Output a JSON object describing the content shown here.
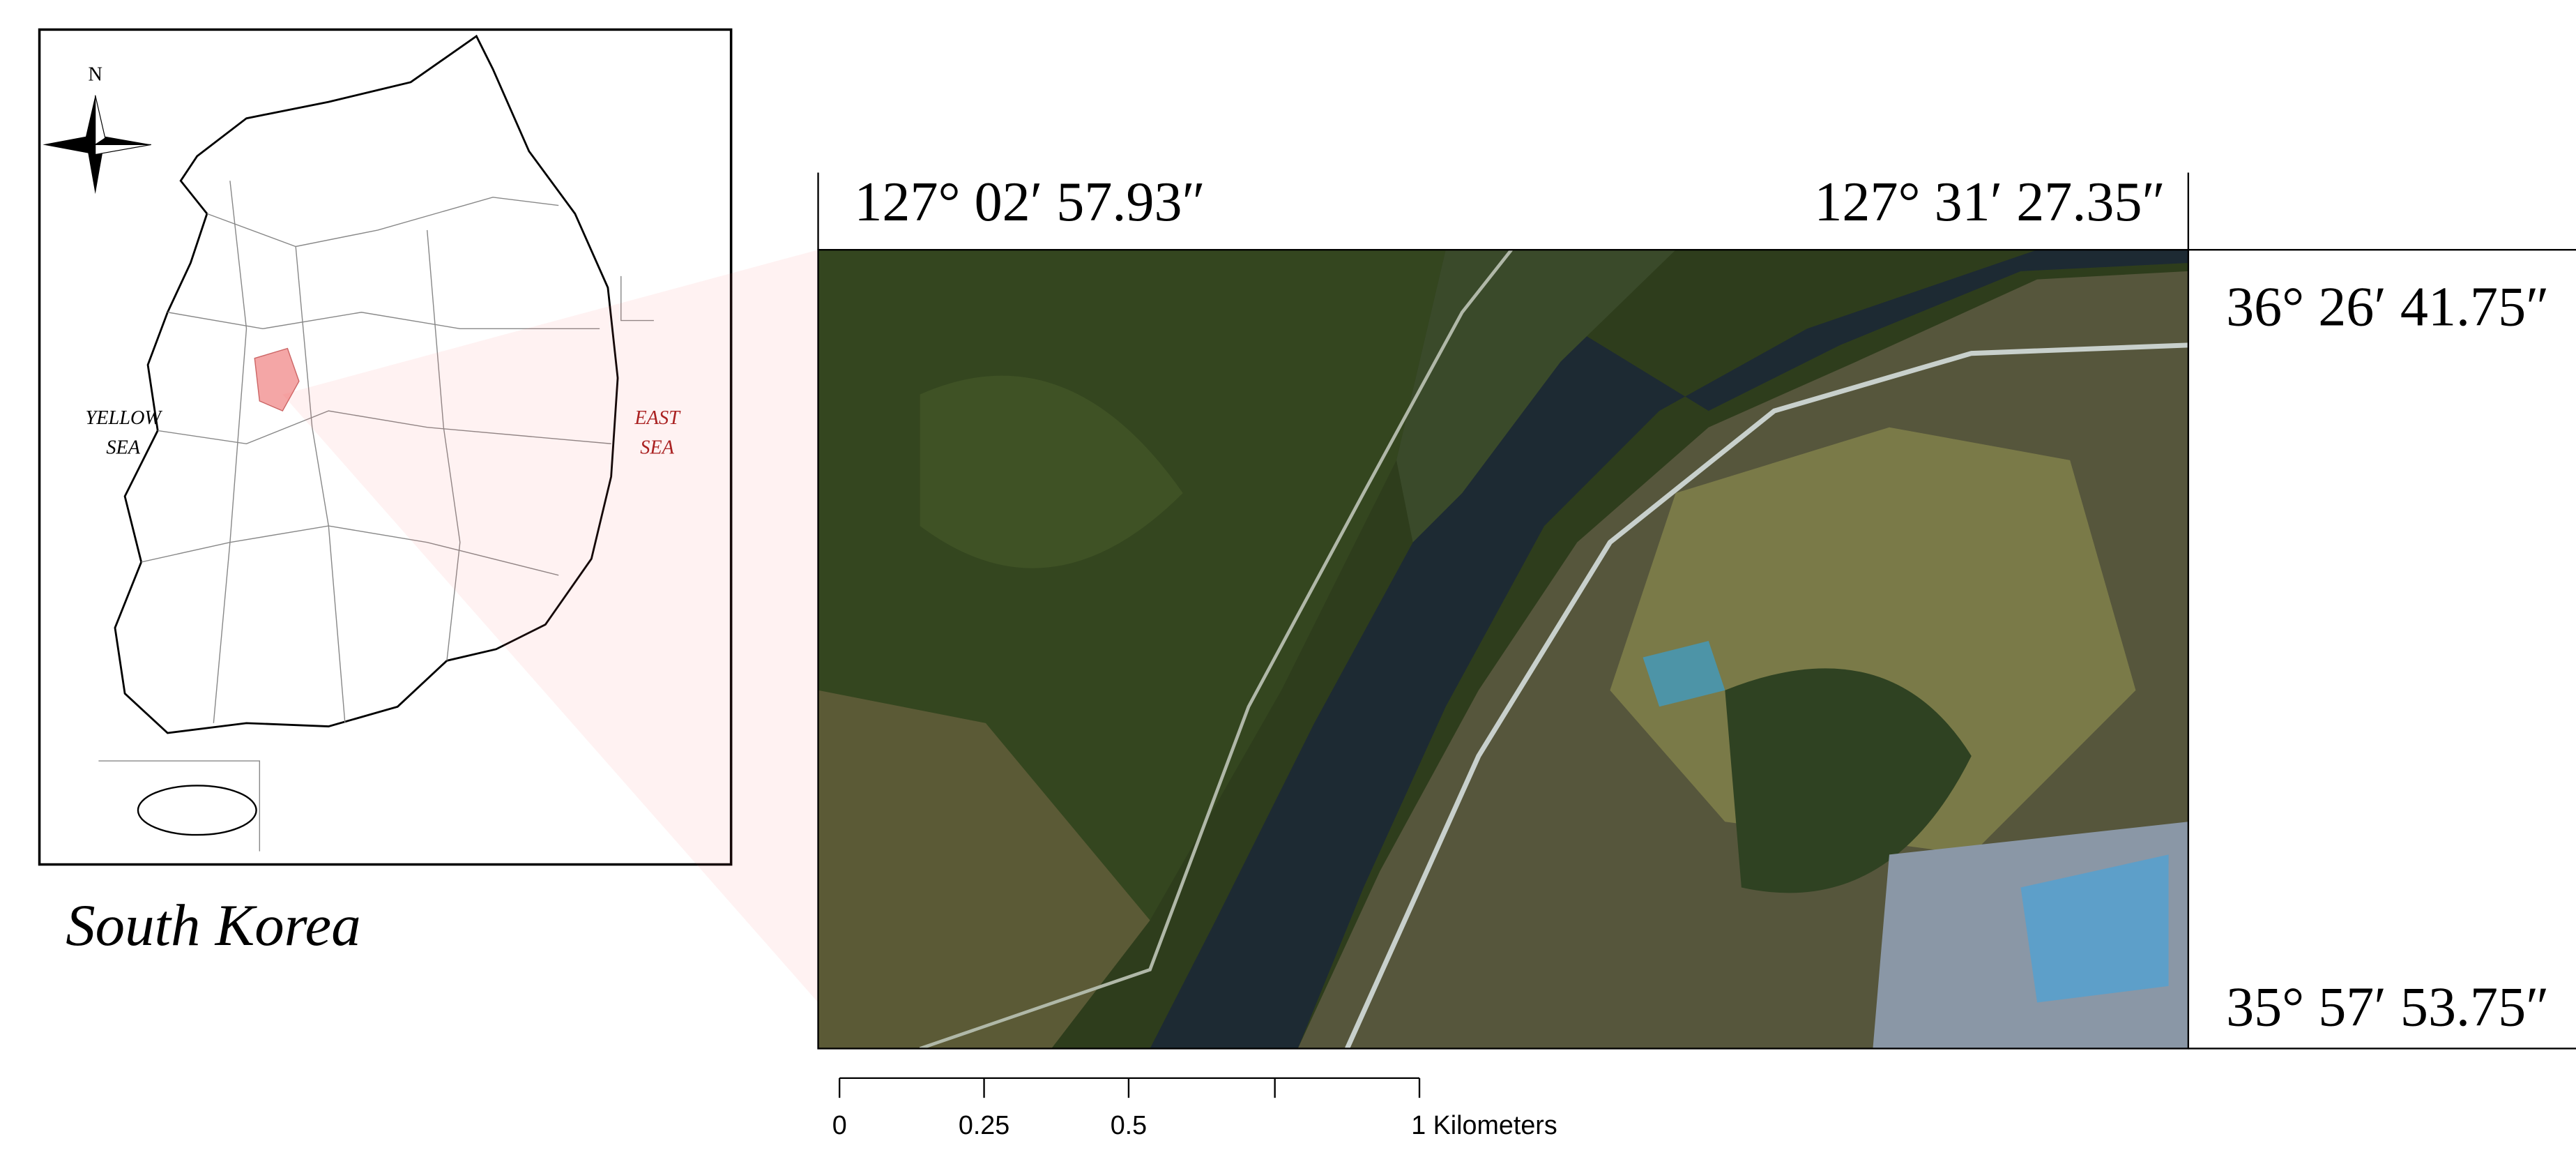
{
  "inset": {
    "north": "N",
    "yellow_sea": [
      "YELLOW",
      "SEA"
    ],
    "east_sea": [
      "EAST",
      "SEA"
    ],
    "caption": "South Korea"
  },
  "image": {
    "top_left": "127° 02′ 57.93″",
    "top_right": "127° 31′ 27.35″",
    "right_top": "36° 26′ 41.75″",
    "right_bottom": "35° 57′ 53.75″"
  },
  "scale_bar": {
    "labels": [
      "0",
      "0.25",
      "0.5",
      "1 Kilometers"
    ]
  }
}
